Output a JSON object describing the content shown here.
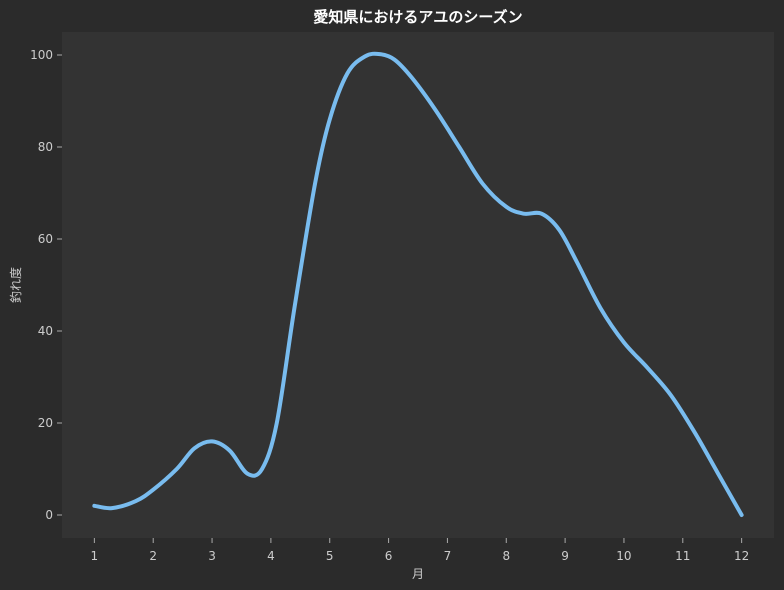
{
  "chart_data": {
    "type": "line",
    "title": "愛知県におけるアユのシーズン",
    "xlabel": "月",
    "ylabel": "釣れ度",
    "x": [
      1,
      2,
      3,
      4,
      5,
      6,
      7,
      8,
      9,
      10,
      11,
      12
    ],
    "x_ticks": [
      "1",
      "2",
      "3",
      "4",
      "5",
      "6",
      "7",
      "8",
      "9",
      "10",
      "11",
      "12"
    ],
    "y_ticks": [
      "0",
      "20",
      "40",
      "60",
      "80",
      "100"
    ],
    "xlim": [
      0.45,
      12.55
    ],
    "ylim": [
      -5,
      105
    ],
    "grid": false,
    "series": [
      {
        "points": [
          [
            1.0,
            2
          ],
          [
            1.3,
            1.5
          ],
          [
            1.7,
            3
          ],
          [
            2.0,
            5.5
          ],
          [
            2.4,
            10
          ],
          [
            2.7,
            14.5
          ],
          [
            3.0,
            16
          ],
          [
            3.3,
            14
          ],
          [
            3.6,
            9
          ],
          [
            3.85,
            10
          ],
          [
            4.1,
            20
          ],
          [
            4.4,
            45
          ],
          [
            4.75,
            72
          ],
          [
            5.0,
            86
          ],
          [
            5.3,
            96
          ],
          [
            5.6,
            99.7
          ],
          [
            5.85,
            100.2
          ],
          [
            6.1,
            99
          ],
          [
            6.4,
            95
          ],
          [
            6.8,
            88
          ],
          [
            7.2,
            80
          ],
          [
            7.6,
            72
          ],
          [
            8.0,
            67
          ],
          [
            8.3,
            65.5
          ],
          [
            8.6,
            65.5
          ],
          [
            8.9,
            62
          ],
          [
            9.2,
            55
          ],
          [
            9.6,
            45
          ],
          [
            10.0,
            37.5
          ],
          [
            10.4,
            32
          ],
          [
            10.8,
            26
          ],
          [
            11.2,
            18
          ],
          [
            11.6,
            9
          ],
          [
            12.0,
            0
          ]
        ]
      }
    ],
    "colors": {
      "figure_bg": "#2b2b2b",
      "plot_bg": "#333333",
      "line": "#79bcef",
      "text": "#cccccc",
      "title": "#ffffff",
      "tick": "#aaaaaa"
    }
  }
}
